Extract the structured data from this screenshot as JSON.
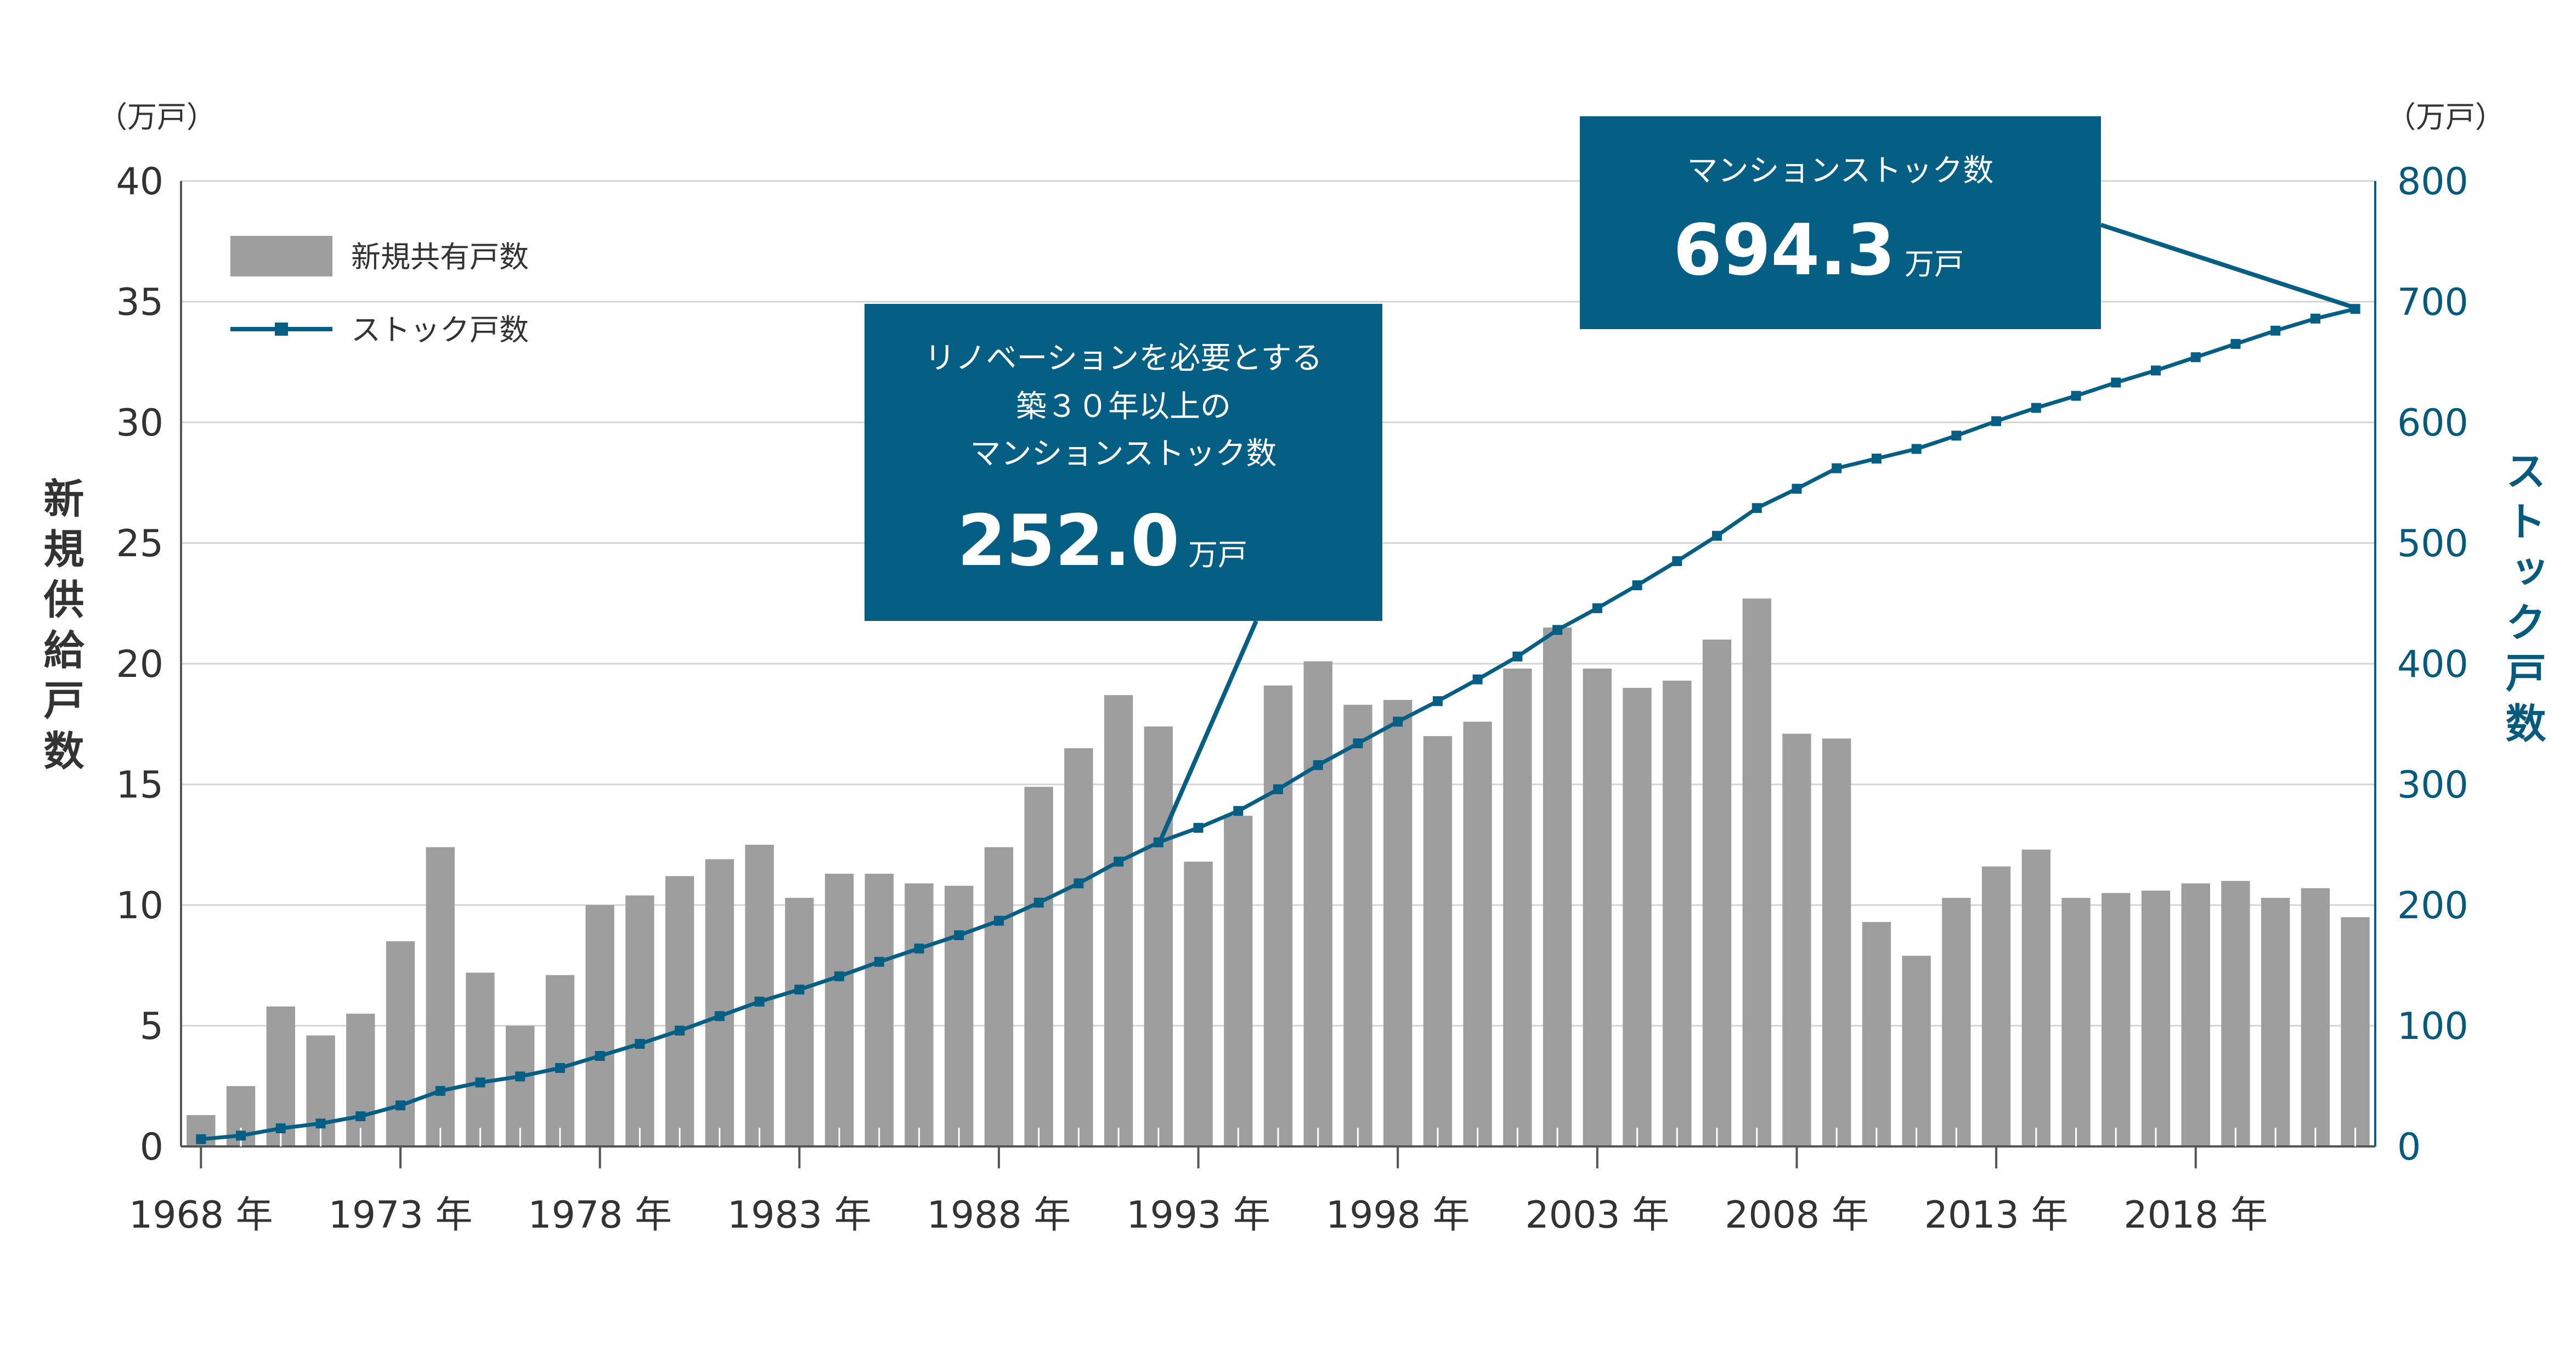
{
  "chart_data": {
    "type": "bar",
    "years": [
      1968,
      1969,
      1970,
      1971,
      1972,
      1973,
      1974,
      1975,
      1976,
      1977,
      1978,
      1979,
      1980,
      1981,
      1982,
      1983,
      1984,
      1985,
      1986,
      1987,
      1988,
      1989,
      1990,
      1991,
      1992,
      1993,
      1994,
      1995,
      1996,
      1997,
      1998,
      1999,
      2000,
      2001,
      2002,
      2003,
      2004,
      2005,
      2006,
      2007,
      2008,
      2009,
      2010,
      2011,
      2012,
      2013,
      2014,
      2015,
      2016,
      2017,
      2018,
      2019,
      2020,
      2021,
      2022
    ],
    "x_tick_labels": [
      "1968 年",
      "1973 年",
      "1978 年",
      "1983 年",
      "1988 年",
      "1993 年",
      "1998 年",
      "2003 年",
      "2008 年",
      "2013 年",
      "2018 年"
    ],
    "x_tick_years": [
      1968,
      1973,
      1978,
      1983,
      1988,
      1993,
      1998,
      2003,
      2008,
      2013,
      2018
    ],
    "series": [
      {
        "name": "新規共有戸数",
        "axis": "left",
        "kind": "bar",
        "color": "#9e9e9e",
        "values": [
          1.3,
          2.5,
          5.8,
          4.6,
          5.5,
          8.5,
          12.4,
          7.2,
          5.0,
          7.1,
          10.0,
          10.4,
          11.2,
          11.9,
          12.5,
          10.3,
          11.3,
          11.3,
          10.9,
          10.8,
          12.4,
          14.9,
          16.5,
          18.7,
          17.4,
          11.8,
          13.7,
          19.1,
          20.1,
          18.3,
          18.5,
          17.0,
          17.6,
          19.8,
          21.5,
          19.8,
          19.0,
          19.3,
          21.0,
          22.7,
          17.1,
          16.9,
          9.3,
          7.9,
          10.3,
          11.6,
          12.3,
          10.3,
          10.5,
          10.6,
          10.9,
          11.0,
          10.3,
          10.7,
          9.5
        ]
      },
      {
        "name": "ストック戸数",
        "axis": "right",
        "kind": "line",
        "color": "#055f85",
        "values": [
          6,
          9,
          15,
          19,
          25,
          34,
          46,
          53,
          58,
          65,
          75,
          85,
          96,
          108,
          120,
          130,
          141,
          153,
          164,
          175,
          187,
          202,
          218,
          236,
          252,
          264,
          278,
          296,
          316,
          334,
          352,
          369,
          387,
          406,
          428,
          446,
          465,
          485,
          506,
          529,
          545,
          562,
          570,
          578,
          589,
          601,
          612,
          622,
          633,
          643,
          654,
          665,
          676,
          686,
          694
        ]
      }
    ],
    "left_axis": {
      "unit": "（万戸）",
      "ticks": [
        "0",
        "5",
        "10",
        "15",
        "20",
        "25",
        "30",
        "35",
        "40"
      ],
      "range": [
        0,
        40
      ],
      "label": "新規供給戸数"
    },
    "right_axis": {
      "unit": "（万戸）",
      "ticks": [
        "0",
        "100",
        "200",
        "300",
        "400",
        "500",
        "600",
        "700",
        "800"
      ],
      "range": [
        0,
        800
      ],
      "label": "ストック戸数"
    },
    "legend": {
      "placement": "top-left",
      "items": [
        "新規共有戸数",
        "ストック戸数"
      ]
    },
    "grid": "horizontal",
    "annotations": [
      {
        "lines": [
          "リノベーションを必要とする",
          "築３０年以上の",
          "マンションストック数"
        ],
        "value": "252.0",
        "unit": "万戸",
        "points_to_year": 1992
      },
      {
        "lines": [
          "マンションストック数"
        ],
        "value": "694.3",
        "unit": "万戸",
        "points_to_year": 2022
      }
    ]
  }
}
